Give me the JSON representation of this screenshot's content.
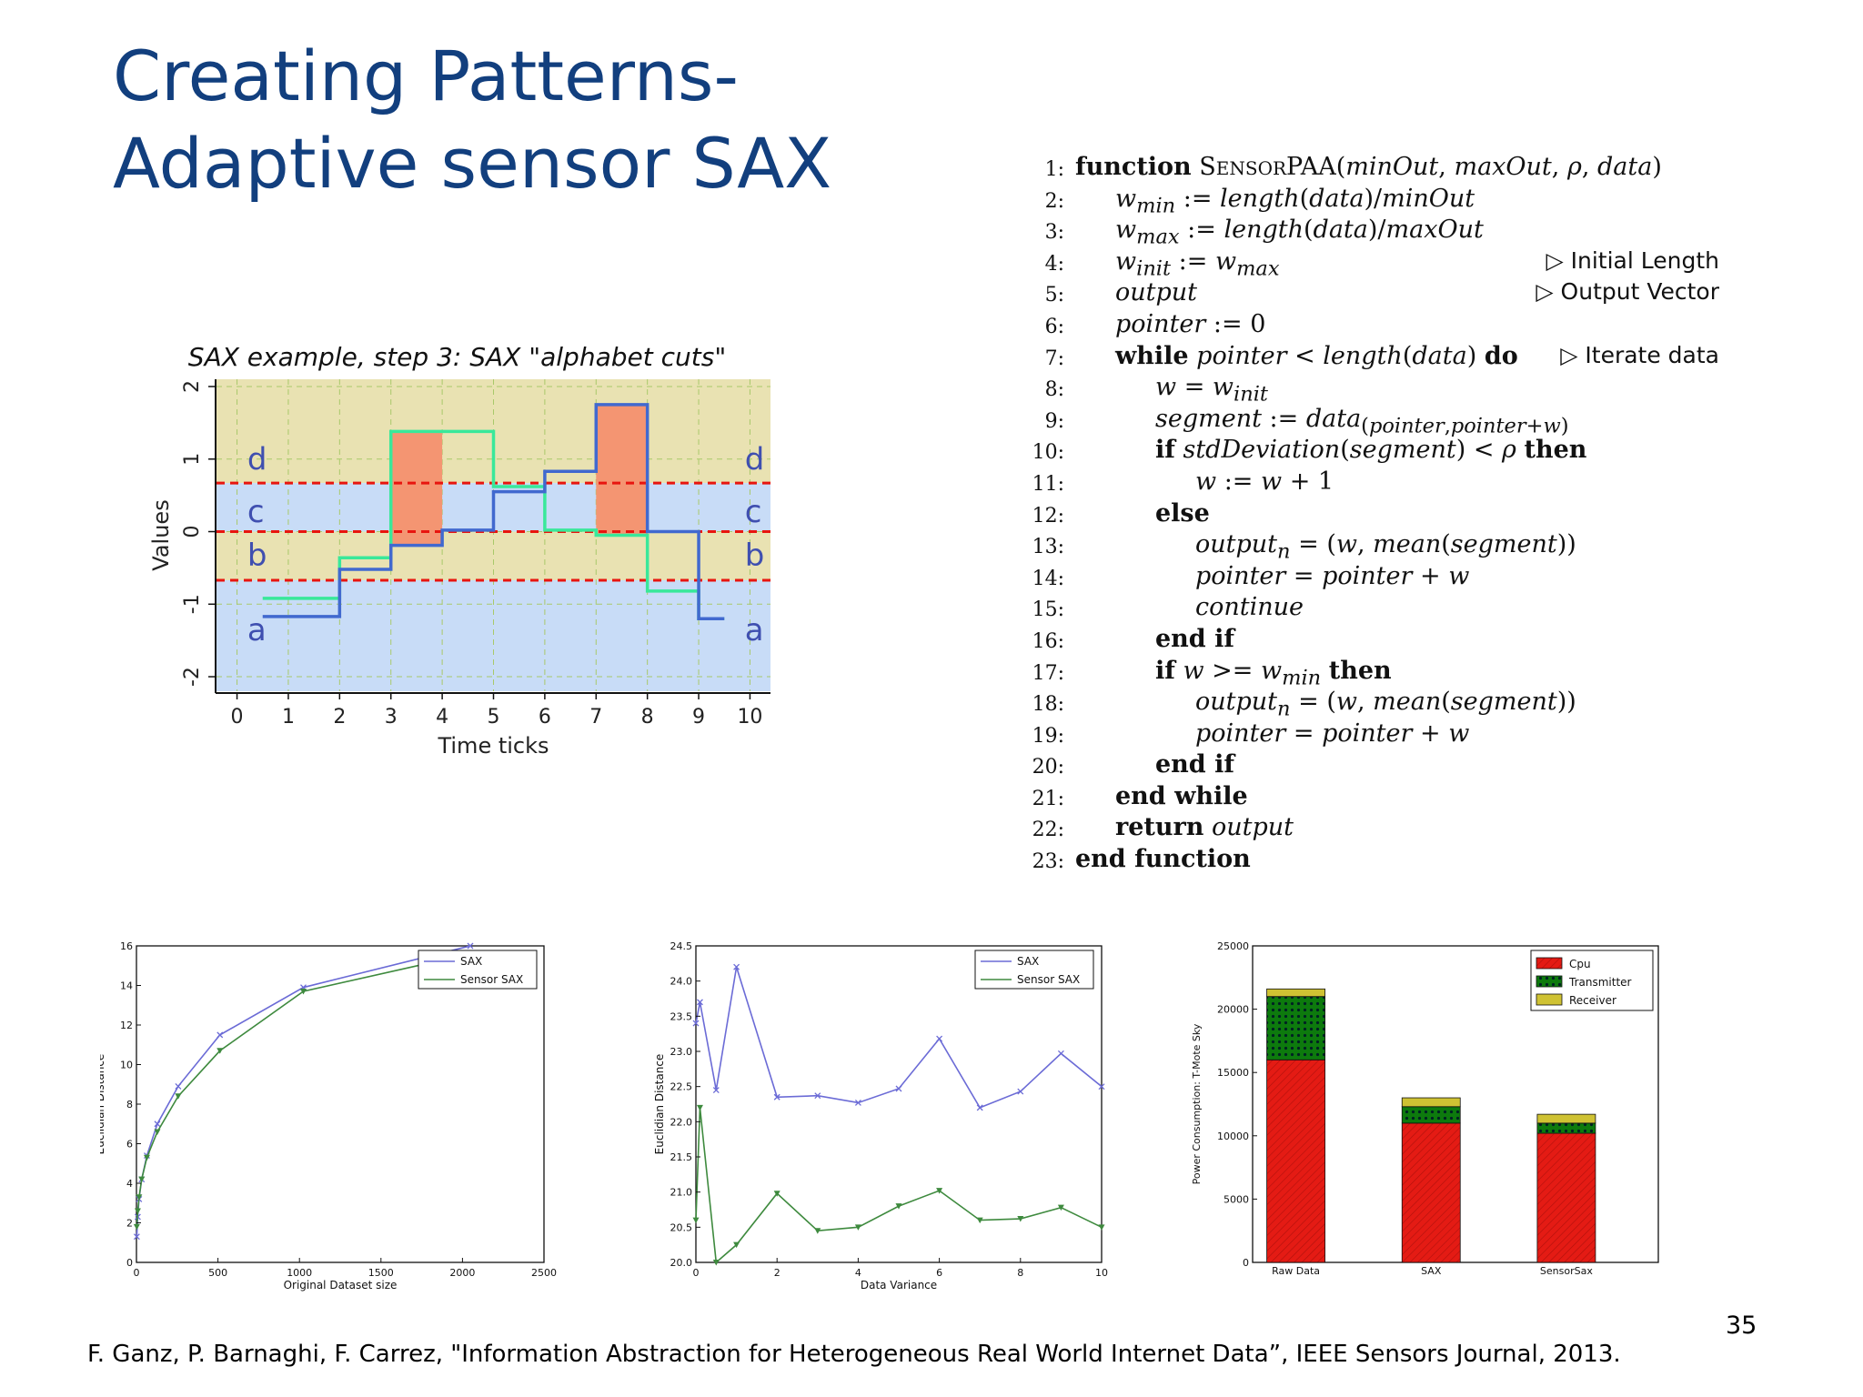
{
  "slide": {
    "title_line1": "Creating Patterns-",
    "title_line2": "Adaptive sensor SAX",
    "footer": "F. Ganz, P. Barnaghi, F. Carrez, \"Information Abstraction for Heterogeneous Real World Internet Data”, IEEE Sensors Journal, 2013.",
    "page_number": "35"
  },
  "algorithm": {
    "lines": [
      {
        "num": "1:",
        "indent": 0,
        "html": "<b>function</b> S<span style=\"font-size:20px\">ENSOR</span>PAA(<i>minOut</i>, <i>maxOut</i>, <i>ρ</i>, <i>data</i>)",
        "comment": ""
      },
      {
        "num": "2:",
        "indent": 1,
        "html": "<i>w<sub>min</sub></i> := <i>length</i>(<i>data</i>)/<i>minOut</i>",
        "comment": ""
      },
      {
        "num": "3:",
        "indent": 1,
        "html": "<i>w<sub>max</sub></i> := <i>length</i>(<i>data</i>)/<i>maxOut</i>",
        "comment": ""
      },
      {
        "num": "4:",
        "indent": 1,
        "html": "<i>w<sub>init</sub></i> := <i>w<sub>max</sub></i>",
        "comment": "▷ Initial Length"
      },
      {
        "num": "5:",
        "indent": 1,
        "html": "<i>output</i>",
        "comment": "▷ Output Vector"
      },
      {
        "num": "6:",
        "indent": 1,
        "html": "<i>pointer</i> := 0",
        "comment": ""
      },
      {
        "num": "7:",
        "indent": 1,
        "html": "<b>while</b> <i>pointer</i> &lt; <i>length</i>(<i>data</i>) <b>do</b>",
        "comment": "▷ Iterate data"
      },
      {
        "num": "8:",
        "indent": 2,
        "html": "<i>w</i> = <i>w<sub>init</sub></i>",
        "comment": ""
      },
      {
        "num": "9:",
        "indent": 2,
        "html": "<i>segment</i> := <i>data</i><sub>(<i>pointer</i>,<i>pointer</i>+<i>w</i>)</sub>",
        "comment": ""
      },
      {
        "num": "10:",
        "indent": 2,
        "html": "<b>if</b> <i>stdDeviation</i>(<i>segment</i>) &lt; <i>ρ</i> <b>then</b>",
        "comment": ""
      },
      {
        "num": "11:",
        "indent": 3,
        "html": "<i>w</i> := <i>w</i> + 1",
        "comment": ""
      },
      {
        "num": "12:",
        "indent": 2,
        "html": "<b>else</b>",
        "comment": ""
      },
      {
        "num": "13:",
        "indent": 3,
        "html": "<i>output<sub>n</sub></i> = (<i>w</i>, <i>mean</i>(<i>segment</i>))",
        "comment": ""
      },
      {
        "num": "14:",
        "indent": 3,
        "html": "<i>pointer</i> = <i>pointer</i> + <i>w</i>",
        "comment": ""
      },
      {
        "num": "15:",
        "indent": 3,
        "html": "<i>continue</i>",
        "comment": ""
      },
      {
        "num": "16:",
        "indent": 2,
        "html": "<b>end if</b>",
        "comment": ""
      },
      {
        "num": "17:",
        "indent": 2,
        "html": "<b>if</b> <i>w</i> &gt;= <i>w<sub>min</sub></i> <b>then</b>",
        "comment": ""
      },
      {
        "num": "18:",
        "indent": 3,
        "html": "<i>output<sub>n</sub></i> = (<i>w</i>, <i>mean</i>(<i>segment</i>))",
        "comment": ""
      },
      {
        "num": "19:",
        "indent": 3,
        "html": "<i>pointer</i> = <i>pointer</i> + <i>w</i>",
        "comment": ""
      },
      {
        "num": "20:",
        "indent": 2,
        "html": "<b>end if</b>",
        "comment": ""
      },
      {
        "num": "21:",
        "indent": 1,
        "html": "<b>end while</b>",
        "comment": ""
      },
      {
        "num": "22:",
        "indent": 1,
        "html": "<b>return</b> <i>output</i>",
        "comment": ""
      },
      {
        "num": "23:",
        "indent": 0,
        "html": "<b>end function</b>",
        "comment": ""
      }
    ]
  },
  "chart_data": [
    {
      "type": "line",
      "title": "SAX example, step 3: SAX \"alphabet cuts\"",
      "xlabel": "Time ticks",
      "ylabel": "Values",
      "xlim": [
        -0.4,
        10.4
      ],
      "ylim": [
        -2.2,
        2.1
      ],
      "xticks": [
        0,
        1,
        2,
        3,
        4,
        5,
        6,
        7,
        8,
        9,
        10
      ],
      "yticks": [
        -2,
        -1,
        0,
        1,
        2
      ],
      "cuts": [
        -0.67,
        0,
        0.67
      ],
      "letters_left": [
        "d",
        "c",
        "b",
        "a"
      ],
      "letters_right": [
        "d",
        "c",
        "b",
        "a"
      ],
      "colors": {
        "band_yellow": "#e9e2b2",
        "band_blue": "#c8dcf7",
        "cut": "#e8150f",
        "salmon": "#f49572",
        "paa": "#4169cf",
        "sax": "#39e89a"
      },
      "highlight_regions": [
        {
          "x0": 3,
          "x1": 4,
          "y0": -0.2,
          "y1": 1.38
        },
        {
          "x0": 7,
          "x1": 8,
          "y0": -0.05,
          "y1": 1.75
        }
      ],
      "series": [
        {
          "name": "",
          "steps": [
            [
              0.5,
              2,
              -1.17
            ],
            [
              2,
              3,
              -0.52
            ],
            [
              3,
              4,
              -0.19
            ],
            [
              4,
              5,
              0.02
            ],
            [
              5,
              6,
              0.55
            ],
            [
              6,
              7,
              0.83
            ],
            [
              7,
              8,
              1.75
            ],
            [
              8,
              9,
              0.0
            ],
            [
              9,
              9.5,
              -1.2
            ]
          ]
        },
        {
          "name": "",
          "steps": [
            [
              0.5,
              2,
              -0.92
            ],
            [
              2,
              3,
              -0.36
            ],
            [
              3,
              5,
              1.38
            ],
            [
              5,
              6,
              0.62
            ],
            [
              6,
              7,
              0.02
            ],
            [
              7,
              8,
              -0.05
            ],
            [
              8,
              9,
              -0.82
            ],
            [
              9,
              9.5,
              -1.2
            ]
          ]
        }
      ]
    },
    {
      "type": "line",
      "xlabel": "Original Dataset size",
      "ylabel": "Euclidian Distance",
      "xlim": [
        0,
        2500
      ],
      "ylim": [
        0,
        16
      ],
      "xticks": [
        0,
        500,
        1000,
        1500,
        2000,
        2500
      ],
      "yticks": [
        0,
        2,
        4,
        6,
        8,
        10,
        12,
        14,
        16
      ],
      "legend": "top-right",
      "series": [
        {
          "name": "SAX",
          "color": "#6b6bd6",
          "x": [
            2,
            8,
            16,
            32,
            64,
            128,
            256,
            512,
            1024,
            2048
          ],
          "y": [
            1.3,
            2.3,
            3.2,
            4.2,
            5.4,
            7.0,
            8.9,
            11.5,
            13.9,
            16.0
          ]
        },
        {
          "name": "Sensor SAX",
          "color": "#3e8a3e",
          "x": [
            2,
            8,
            16,
            32,
            64,
            128,
            256,
            512,
            1024,
            2048
          ],
          "y": [
            1.8,
            2.6,
            3.3,
            4.2,
            5.3,
            6.6,
            8.4,
            10.7,
            13.7,
            15.6
          ]
        }
      ]
    },
    {
      "type": "line",
      "xlabel": "Data Variance",
      "ylabel": "Euclidian Distance",
      "xlim": [
        0,
        10
      ],
      "ylim": [
        20.0,
        24.5
      ],
      "xticks": [
        0,
        2,
        4,
        6,
        8,
        10
      ],
      "yticks": [
        20.0,
        20.5,
        21.0,
        21.5,
        22.0,
        22.5,
        23.0,
        23.5,
        24.0,
        24.5
      ],
      "legend": "top-right",
      "series": [
        {
          "name": "SAX",
          "color": "#6b6bd6",
          "x": [
            0,
            0.1,
            0.5,
            1,
            2,
            3,
            4,
            5,
            6,
            7,
            8,
            9,
            10
          ],
          "y": [
            23.4,
            23.7,
            22.45,
            24.2,
            22.35,
            22.37,
            22.27,
            22.47,
            23.18,
            22.2,
            22.43,
            22.97,
            22.5
          ]
        },
        {
          "name": "Sensor SAX",
          "color": "#3e8a3e",
          "x": [
            0,
            0.1,
            0.5,
            1,
            2,
            3,
            4,
            5,
            6,
            7,
            8,
            9,
            10
          ],
          "y": [
            20.6,
            22.2,
            20.0,
            20.25,
            20.98,
            20.45,
            20.5,
            20.8,
            21.02,
            20.6,
            20.62,
            20.78,
            20.5
          ]
        }
      ]
    },
    {
      "type": "bar",
      "ylabel": "Power Consumption: T-Mote Sky",
      "categories": [
        "Raw Data",
        "SAX",
        "SensorSax"
      ],
      "ylim": [
        0,
        25000
      ],
      "yticks": [
        0,
        5000,
        10000,
        15000,
        20000,
        25000
      ],
      "legend": "top-right",
      "stacked": true,
      "series": [
        {
          "name": "Cpu",
          "color": "#e41b14",
          "values": [
            16000,
            11000,
            10200
          ]
        },
        {
          "name": "Transmitter",
          "color": "#0d7a0d",
          "values": [
            5000,
            1300,
            800
          ]
        },
        {
          "name": "Receiver",
          "color": "#cfc233",
          "values": [
            600,
            700,
            700
          ]
        }
      ]
    }
  ]
}
